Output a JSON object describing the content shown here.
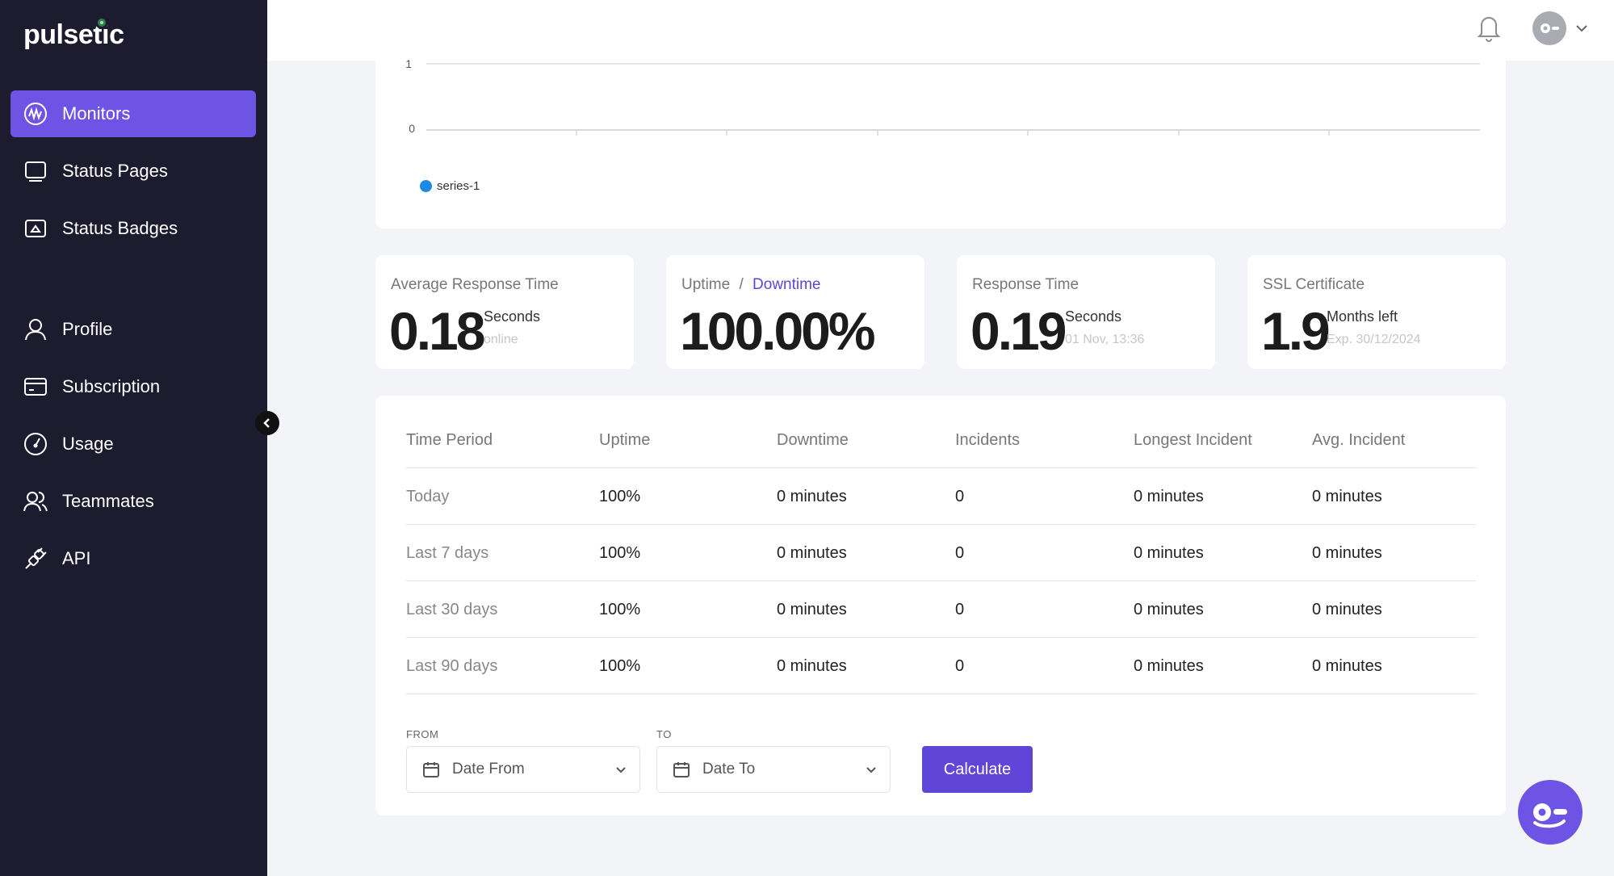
{
  "app": {
    "logo": "pulsetic"
  },
  "sidebar": {
    "items": [
      {
        "label": "Monitors",
        "icon": "monitor-wave-icon",
        "active": true
      },
      {
        "label": "Status Pages",
        "icon": "screen-icon"
      },
      {
        "label": "Status Badges",
        "icon": "badge-icon"
      },
      {
        "label": "Profile",
        "icon": "user-icon"
      },
      {
        "label": "Subscription",
        "icon": "card-icon"
      },
      {
        "label": "Usage",
        "icon": "gauge-icon"
      },
      {
        "label": "Teammates",
        "icon": "users-icon"
      },
      {
        "label": "API",
        "icon": "plug-icon"
      }
    ]
  },
  "chart": {
    "y_ticks": [
      "1",
      "0"
    ],
    "legend": "series-1",
    "series_color": "#1e88e5"
  },
  "stats": [
    {
      "label": "Average Response Time",
      "value": "0.18",
      "unit": "Seconds",
      "sub": "online"
    },
    {
      "label": "Uptime",
      "label_sep": "/",
      "label_link": "Downtime",
      "value": "100.00%"
    },
    {
      "label": "Response Time",
      "value": "0.19",
      "unit": "Seconds",
      "sub": "01 Nov, 13:36"
    },
    {
      "label": "SSL Certificate",
      "value": "1.9",
      "unit": "Months left",
      "sub": "Exp. 30/12/2024"
    }
  ],
  "table": {
    "headers": [
      "Time Period",
      "Uptime",
      "Downtime",
      "Incidents",
      "Longest Incident",
      "Avg. Incident"
    ],
    "rows": [
      [
        "Today",
        "100%",
        "0 minutes",
        "0",
        "0 minutes",
        "0 minutes"
      ],
      [
        "Last 7 days",
        "100%",
        "0 minutes",
        "0",
        "0 minutes",
        "0 minutes"
      ],
      [
        "Last 30 days",
        "100%",
        "0 minutes",
        "0",
        "0 minutes",
        "0 minutes"
      ],
      [
        "Last 90 days",
        "100%",
        "0 minutes",
        "0",
        "0 minutes",
        "0 minutes"
      ]
    ]
  },
  "range": {
    "from_label": "FROM",
    "from_placeholder": "Date From",
    "to_label": "TO",
    "to_placeholder": "Date To",
    "button": "Calculate"
  },
  "colors": {
    "accent": "#6d54e4",
    "sidebar_bg": "#1d1b2e"
  }
}
